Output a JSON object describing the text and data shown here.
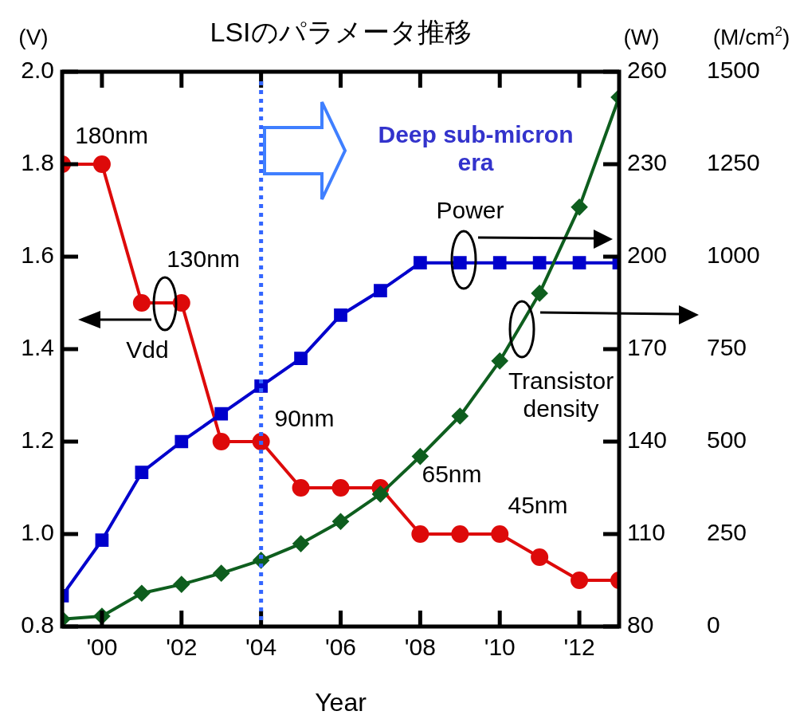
{
  "chart_data": {
    "type": "line",
    "title": "LSIのパラメータ推移",
    "xlabel": "Year",
    "ylabel": "(V)",
    "y2label": "(W)",
    "y3label": "(M/cm$^{2}$)",
    "x": [
      1999,
      2000,
      2001,
      2002,
      2003,
      2004,
      2005,
      2006,
      2007,
      2008,
      2009,
      2010,
      2011,
      2012,
      2013
    ],
    "xlim": [
      1999,
      2013
    ],
    "xticks": [
      {
        "value": 2000,
        "label": "'00"
      },
      {
        "value": 2002,
        "label": "'02"
      },
      {
        "value": 2004,
        "label": "'04"
      },
      {
        "value": 2006,
        "label": "'06"
      },
      {
        "value": 2008,
        "label": "'08"
      },
      {
        "value": 2010,
        "label": "'10"
      },
      {
        "value": 2012,
        "label": "'12"
      }
    ],
    "ylim": [
      0.8,
      2.0
    ],
    "yticks": [
      {
        "value": 0.8,
        "label": "0.8"
      },
      {
        "value": 1,
        "label": "1.0"
      },
      1.2,
      1.4,
      1.6,
      1.8,
      {
        "value": 2,
        "label": "2.0"
      }
    ],
    "y2lim": [
      80,
      260
    ],
    "y2ticks": [
      80,
      110,
      140,
      170,
      200,
      230,
      260
    ],
    "y3lim": [
      0,
      1500
    ],
    "y3ticks": [
      0,
      250,
      500,
      750,
      1000,
      1250,
      1500
    ],
    "grid": false,
    "legend": false,
    "series": [
      {
        "color": "#dd0a0a",
        "marker": "circle",
        "values": [
          1.8,
          1.8,
          1.5,
          1.5,
          1.2,
          1.2,
          1.1,
          1.1,
          1.1,
          1.0,
          1.0,
          1.0,
          0.95,
          0.9,
          0.9
        ]
      },
      {
        "axis": "y2",
        "color": "#0000cc",
        "marker": "square",
        "values": [
          90,
          108,
          130,
          140,
          149,
          158,
          167,
          181,
          189,
          198,
          198,
          198,
          198,
          198,
          198
        ]
      },
      {
        "axis": "y3",
        "color": "#0e5e1e",
        "marker": "diamond",
        "values": [
          20,
          28,
          90,
          114,
          144,
          179,
          224,
          284,
          358,
          460,
          569,
          718,
          901,
          1134,
          1431
        ]
      }
    ],
    "ref_lines": [
      {
        "axis": "x",
        "value": 2004,
        "color": "#3366ff",
        "line_style": "dotted"
      }
    ],
    "annotations": [
      "180nm",
      "130nm",
      "90nm",
      "65nm",
      "45nm",
      "Vdd",
      "Power",
      "Transistor\ndensity",
      "Deep sub-micron\nera"
    ]
  }
}
